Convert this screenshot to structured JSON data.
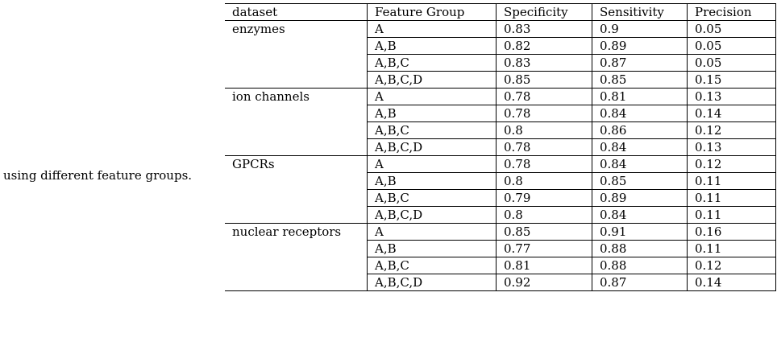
{
  "caption": "using different feature groups.",
  "table": {
    "headers": [
      "dataset",
      "Feature Group",
      "Specificity",
      "Sensitivity",
      "Precision"
    ],
    "blocks": [
      {
        "dataset": "enzymes",
        "rows": [
          {
            "group": "A",
            "specificity": "0.83",
            "sensitivity": "0.9",
            "precision": "0.05"
          },
          {
            "group": "A,B",
            "specificity": "0.82",
            "sensitivity": "0.89",
            "precision": "0.05"
          },
          {
            "group": "A,B,C",
            "specificity": "0.83",
            "sensitivity": "0.87",
            "precision": "0.05"
          },
          {
            "group": "A,B,C,D",
            "specificity": "0.85",
            "sensitivity": "0.85",
            "precision": "0.15"
          }
        ]
      },
      {
        "dataset": "ion channels",
        "rows": [
          {
            "group": "A",
            "specificity": "0.78",
            "sensitivity": "0.81",
            "precision": "0.13"
          },
          {
            "group": "A,B",
            "specificity": "0.78",
            "sensitivity": "0.84",
            "precision": "0.14"
          },
          {
            "group": "A,B,C",
            "specificity": "0.8",
            "sensitivity": "0.86",
            "precision": "0.12"
          },
          {
            "group": "A,B,C,D",
            "specificity": "0.78",
            "sensitivity": "0.84",
            "precision": "0.13"
          }
        ]
      },
      {
        "dataset": "GPCRs",
        "rows": [
          {
            "group": "A",
            "specificity": "0.78",
            "sensitivity": "0.84",
            "precision": "0.12"
          },
          {
            "group": "A,B",
            "specificity": "0.8",
            "sensitivity": "0.85",
            "precision": "0.11"
          },
          {
            "group": "A,B,C",
            "specificity": "0.79",
            "sensitivity": "0.89",
            "precision": "0.11"
          },
          {
            "group": "A,B,C,D",
            "specificity": "0.8",
            "sensitivity": "0.84",
            "precision": "0.11"
          }
        ]
      },
      {
        "dataset": "nuclear receptors",
        "rows": [
          {
            "group": "A",
            "specificity": "0.85",
            "sensitivity": "0.91",
            "precision": "0.16"
          },
          {
            "group": "A,B",
            "specificity": "0.77",
            "sensitivity": "0.88",
            "precision": "0.11"
          },
          {
            "group": "A,B,C",
            "specificity": "0.81",
            "sensitivity": "0.88",
            "precision": "0.12"
          },
          {
            "group": "A,B,C,D",
            "specificity": "0.92",
            "sensitivity": "0.87",
            "precision": "0.14"
          }
        ]
      }
    ]
  }
}
